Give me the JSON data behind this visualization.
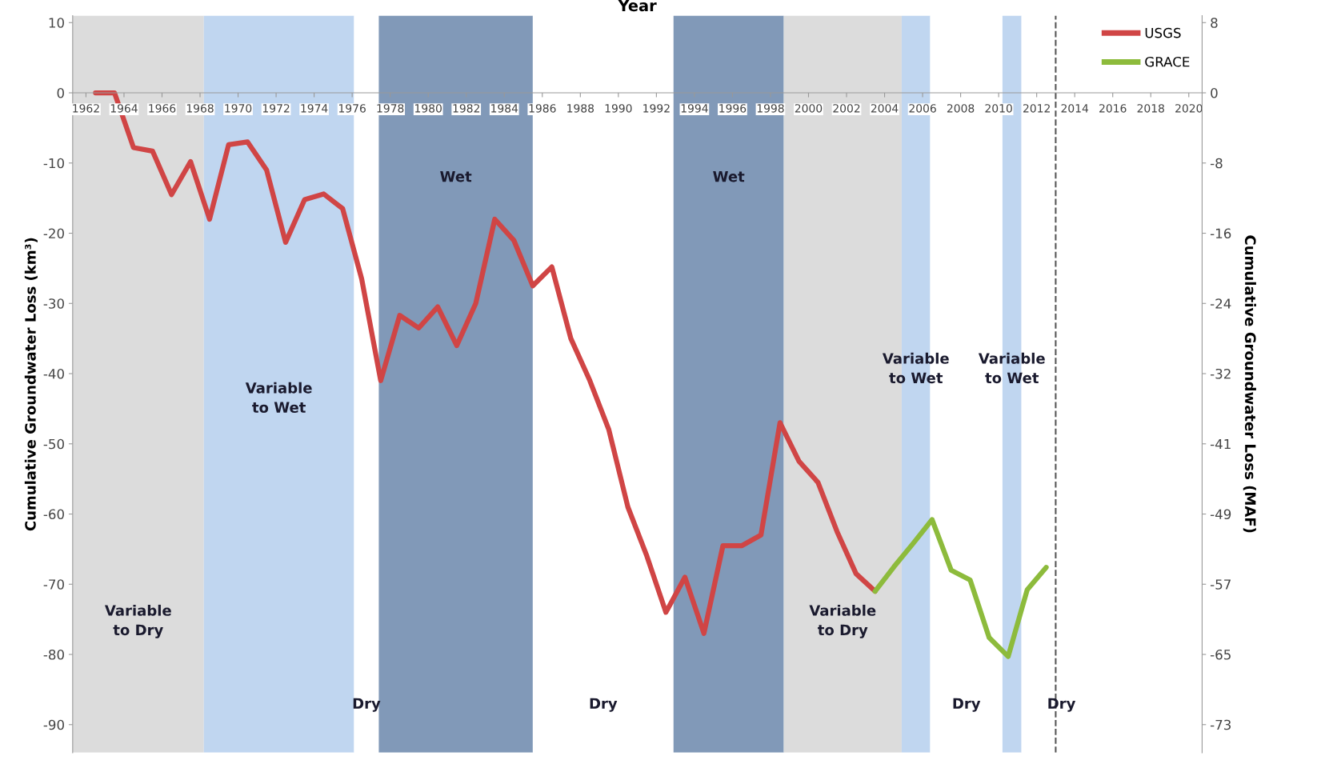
{
  "chart_data": {
    "type": "line",
    "xlabel": "Year",
    "ylabel": "Cumulative Groundwater Loss (km³)",
    "y2label": "Cumulative Groundwater Loss (MAF)",
    "xlim": [
      1961.3,
      2020.7
    ],
    "xticks": [
      1962,
      1964,
      1966,
      1968,
      1970,
      1972,
      1974,
      1976,
      1978,
      1980,
      1982,
      1984,
      1986,
      1988,
      1990,
      1992,
      1994,
      1996,
      1998,
      2000,
      2002,
      2004,
      2006,
      2008,
      2010,
      2012,
      2014,
      2016,
      2018,
      2020
    ],
    "ylim": [
      -94,
      11
    ],
    "yticks": [
      10,
      0,
      -10,
      -20,
      -30,
      -40,
      -50,
      -60,
      -70,
      -80,
      -90
    ],
    "y2lim": [
      -76.14,
      8.91
    ],
    "y2ticks": [
      {
        "value": 8.1,
        "label": "8"
      },
      0,
      {
        "value": -8.1,
        "label": "-8"
      },
      {
        "value": -16.2,
        "label": "-16"
      },
      {
        "value": -24.3,
        "label": "-24"
      },
      {
        "value": -32.4,
        "label": "-32"
      },
      {
        "value": -40.5,
        "label": "-41"
      },
      {
        "value": -48.6,
        "label": "-49"
      },
      {
        "value": -56.7,
        "label": "-57"
      },
      {
        "value": -64.8,
        "label": "-65"
      },
      {
        "value": -72.9,
        "label": "-73"
      }
    ],
    "grid": false,
    "legend": "top right",
    "marker": "none",
    "line_style": "solid",
    "series": [
      {
        "name": "USGS",
        "color": "#d04545",
        "x": [
          1962.5,
          1963.5,
          1964.5,
          1965.5,
          1966.5,
          1967.5,
          1968.5,
          1969.5,
          1970.5,
          1971.5,
          1972.5,
          1973.5,
          1974.5,
          1975.5,
          1976.5,
          1977.5,
          1978.5,
          1979.5,
          1980.5,
          1981.5,
          1982.5,
          1983.5,
          1984.5,
          1985.5,
          1986.5,
          1987.5,
          1988.5,
          1989.5,
          1990.5,
          1991.5,
          1992.5,
          1993.5,
          1994.5,
          1995.5,
          1996.5,
          1997.5,
          1998.5,
          1999.5,
          2000.5,
          2001.5,
          2002.5,
          2003.5
        ],
        "values": [
          0,
          0,
          -7.8,
          -8.3,
          -14.5,
          -9.8,
          -18,
          -7.4,
          -7,
          -11,
          -21.3,
          -15.2,
          -14.4,
          -16.5,
          -26.5,
          -41,
          -31.7,
          -33.5,
          -30.5,
          -36,
          -30,
          -18,
          -21,
          -27.5,
          -24.8,
          -35,
          -41,
          -48,
          -59,
          -66,
          -74,
          -69,
          -77,
          -64.5,
          -64.5,
          -63,
          -47,
          -52.5,
          -55.5,
          -62.5,
          -68.5,
          -71
        ]
      },
      {
        "name": "GRACE",
        "color": "#8dbb3c",
        "x": [
          2003.5,
          2004.5,
          2005.5,
          2006.5,
          2007.5,
          2008.5,
          2009.5,
          2010.5,
          2011.5,
          2012.5
        ],
        "values": [
          -71,
          -67.5,
          -64.2,
          -60.8,
          -68,
          -69.4,
          -77.6,
          -80.3,
          -70.8,
          -67.6
        ]
      }
    ],
    "bands": [
      {
        "axis": "x",
        "from": 1961.3,
        "to": 1968.2,
        "color": "#dcdcdc",
        "label": "Variable\nto Dry"
      },
      {
        "axis": "x",
        "from": 1968.2,
        "to": 1976.1,
        "color": "#c0d6f0",
        "label": "Variable\nto Wet"
      },
      {
        "axis": "x",
        "from": 1976.1,
        "to": 1977.4,
        "color": "#ffffff",
        "label": "Dry"
      },
      {
        "axis": "x",
        "from": 1977.4,
        "to": 1985.5,
        "color": "#8199b8",
        "label": "Wet"
      },
      {
        "axis": "x",
        "from": 1985.5,
        "to": 1992.9,
        "color": "#ffffff",
        "label": "Dry"
      },
      {
        "axis": "x",
        "from": 1992.9,
        "to": 1998.7,
        "color": "#8199b8",
        "label": "Wet"
      },
      {
        "axis": "x",
        "from": 1998.7,
        "to": 2004.9,
        "color": "#dcdcdc",
        "label": "Variable\nto Dry"
      },
      {
        "axis": "x",
        "from": 2004.9,
        "to": 2006.4,
        "color": "#c0d6f0",
        "label": "Variable\nto Wet"
      },
      {
        "axis": "x",
        "from": 2006.4,
        "to": 2010.2,
        "color": "#ffffff",
        "label": "Dry"
      },
      {
        "axis": "x",
        "from": 2010.2,
        "to": 2011.2,
        "color": "#c0d6f0",
        "label": "Variable\nto Wet"
      },
      {
        "axis": "x",
        "from": 2011.2,
        "to": 2015.4,
        "color": "#ffffff",
        "label": "Dry"
      }
    ],
    "ref_lines": [
      {
        "axis": "x",
        "value": 2013,
        "color": "#555555",
        "line_style": "dashed"
      }
    ]
  }
}
